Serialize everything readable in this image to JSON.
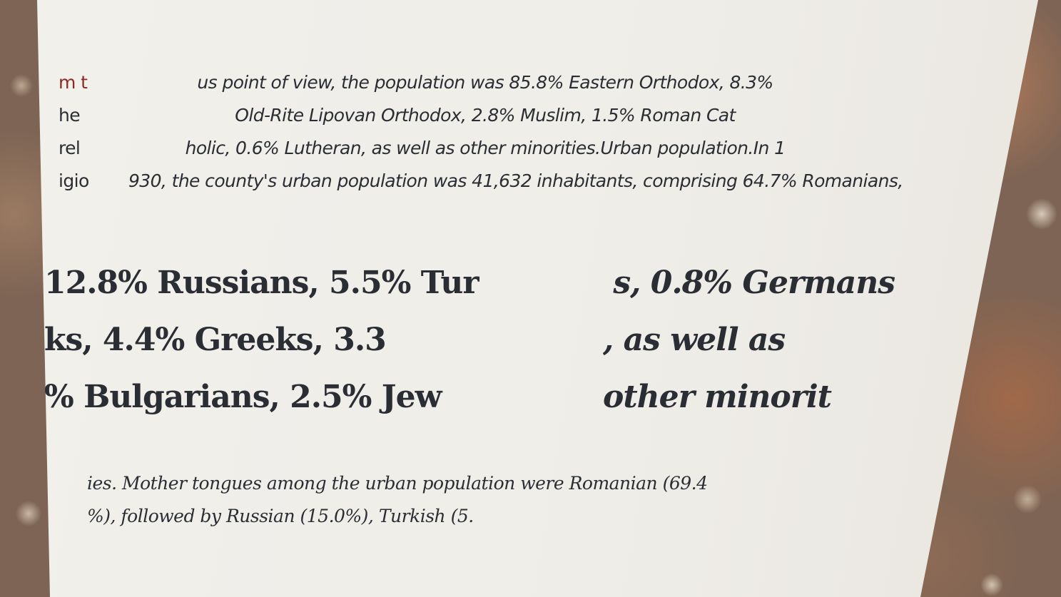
{
  "left_column_lines": [
    "m t",
    "he",
    "rel",
    "igio"
  ],
  "top_paragraph_lines": [
    "us point of view, the population was 85.8% Eastern Orthodox, 8.3%",
    "Old-Rite Lipovan Orthodox, 2.8% Muslim, 1.5% Roman Cat",
    "holic, 0.6% Lutheran, as well as other minorities.Urban population.In 1",
    "930, the county's urban population was 41,632 inhabitants, comprising 64.7% Romanians,"
  ],
  "large_left_lines": [
    "12.8% Russians, 5.5% Tur",
    "ks, 4.4% Greeks, 3.3",
    "% Bulgarians, 2.5% Jew"
  ],
  "large_right_lines": [
    " s, 0.8% Germans",
    ", as well as",
    "other minorit"
  ],
  "bottom_lines": [
    "ies. Mother tongues among the urban population were Romanian (69.4",
    "%), followed by Russian (15.0%), Turkish (5."
  ]
}
